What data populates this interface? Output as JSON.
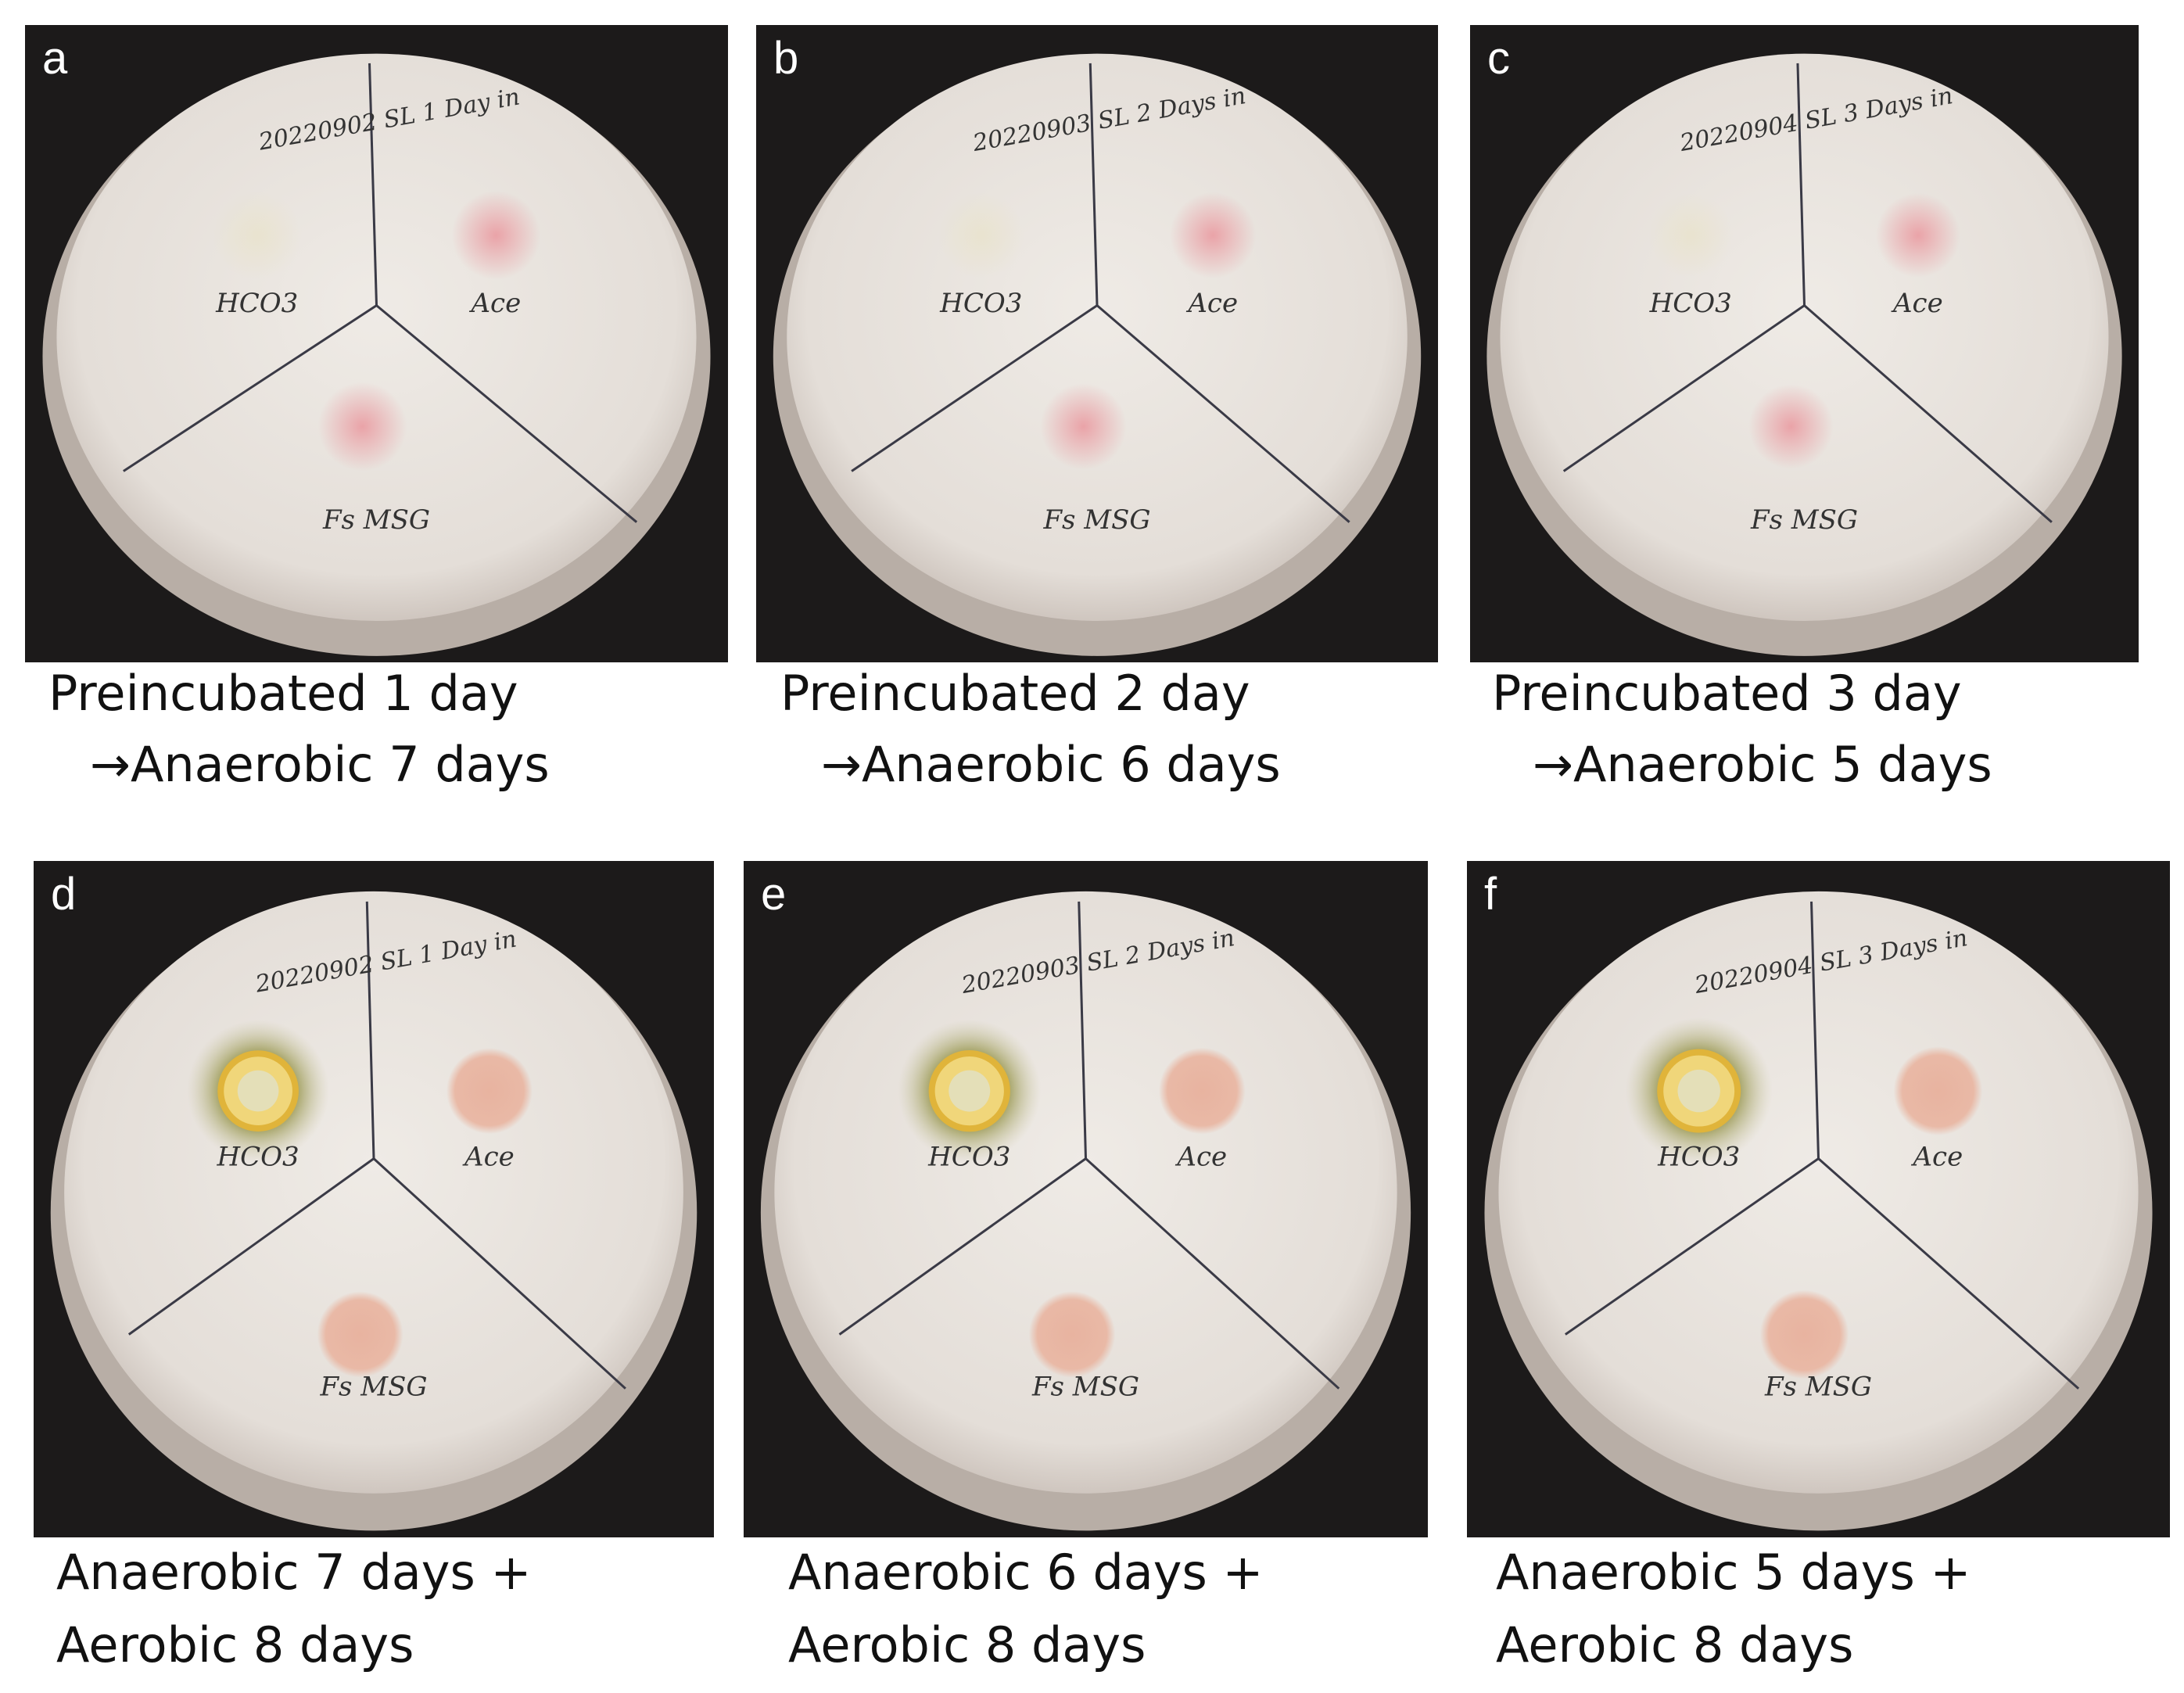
{
  "panels": [
    {
      "letter": "a",
      "note": "20220902 SL 1 Day in",
      "labels": [
        "HCO3",
        "Ace",
        "Fs MSG"
      ],
      "caption": [
        "Preincubated 1 day",
        "→Anaerobic 7 days"
      ]
    },
    {
      "letter": "b",
      "note": "20220903 SL 2 Days in",
      "labels": [
        "HCO3",
        "Ace",
        "Fs MSG"
      ],
      "caption": [
        "Preincubated 2 day",
        "→Anaerobic 6 days"
      ]
    },
    {
      "letter": "c",
      "note": "20220904 SL 3 Days in",
      "labels": [
        "HCO3",
        "Ace",
        "Fs MSG"
      ],
      "caption": [
        "Preincubated 3 day",
        "→Anaerobic 5 days"
      ]
    },
    {
      "letter": "d",
      "note": "20220902 SL 1 Day in",
      "labels": [
        "HCO3",
        "Ace",
        "Fs MSG"
      ],
      "caption": [
        "Anaerobic 7 days +",
        "Aerobic 8 days"
      ]
    },
    {
      "letter": "e",
      "note": "20220903 SL 2 Days in",
      "labels": [
        "HCO3",
        "Ace",
        "Fs MSG"
      ],
      "caption": [
        "Anaerobic 6 days +",
        "Aerobic 8 days"
      ]
    },
    {
      "letter": "f",
      "note": "20220904 SL 3 Days in",
      "labels": [
        "HCO3",
        "Ace",
        "Fs MSG"
      ],
      "caption": [
        "Anaerobic 5 days +",
        "Aerobic 8 days"
      ]
    }
  ]
}
